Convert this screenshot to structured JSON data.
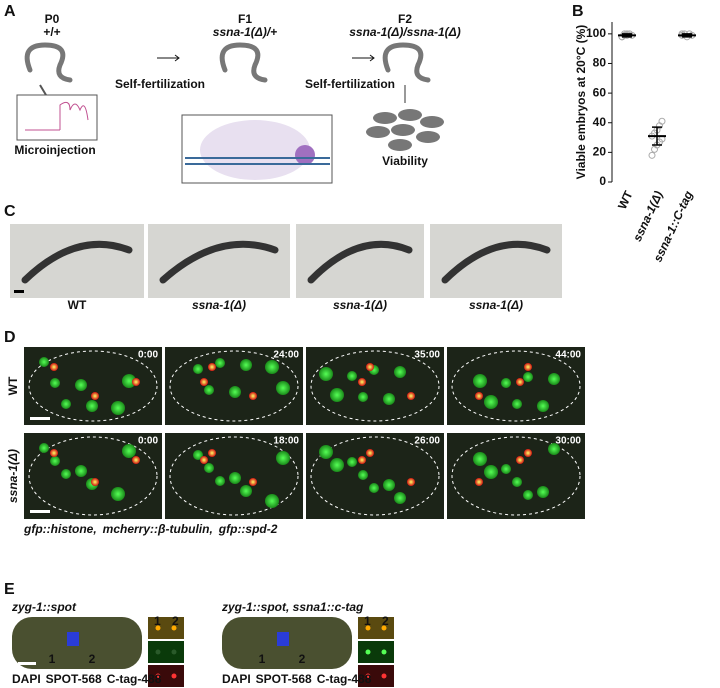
{
  "figure": {
    "a": {
      "label": "A",
      "stages": [
        {
          "name": "P0",
          "genotype": "+/+"
        },
        {
          "name": "F1",
          "genotype": "ssna-1(Δ)/+"
        },
        {
          "name": "F2",
          "genotype": "ssna-1(Δ)/ssna-1(Δ)"
        }
      ],
      "steps": [
        "Self-fertilization",
        "Self-fertilization"
      ],
      "captions": [
        "Microinjection",
        "Viability"
      ]
    },
    "b": {
      "label": "B"
    },
    "c": {
      "label": "C",
      "captions": [
        "WT",
        "ssna-1(Δ)",
        "ssna-1(Δ)",
        "ssna-1(Δ)"
      ]
    },
    "d": {
      "label": "D",
      "rows": [
        {
          "name": "WT",
          "times": [
            "0:00",
            "24:00",
            "35:00",
            "44:00"
          ]
        },
        {
          "name": "ssna-1(Δ)",
          "times": [
            "0:00",
            "18:00",
            "26:00",
            "30:00"
          ]
        }
      ],
      "legend": [
        {
          "text": "gfp::histone,",
          "color": "#2db82d"
        },
        {
          "text": "mcherry::β-tubulin,",
          "color": "#e01010"
        },
        {
          "text": "gfp::spd-2",
          "color": "#2db82d"
        }
      ]
    },
    "e": {
      "label": "E",
      "titles": [
        "zyg-1::spot",
        "zyg-1::spot, ssna1::c-tag"
      ],
      "spots": [
        "1",
        "2"
      ],
      "legend": [
        {
          "text": "DAPI",
          "color": "#1a1adc"
        },
        {
          "text": "SPOT-568",
          "color": "#e01010"
        },
        {
          "text": "C-tag-488",
          "color": "#2db82d"
        }
      ]
    }
  },
  "chart_data": {
    "type": "dot",
    "y_label": "Viable embryos at 20°C (%)",
    "categories": [
      "WT",
      "ssna-1(Δ)",
      "ssna-1::C-tag"
    ],
    "values": [
      99,
      31,
      99
    ],
    "errors": [
      1,
      6,
      1
    ],
    "points": [
      [
        98,
        99,
        100,
        100,
        99,
        98,
        100,
        99
      ],
      [
        18,
        22,
        25,
        27,
        29,
        31,
        33,
        35,
        38,
        41
      ],
      [
        99,
        100,
        98,
        100,
        99,
        100
      ]
    ],
    "ylim": [
      0,
      108
    ],
    "yticks": [
      0,
      20,
      40,
      60,
      80,
      100
    ],
    "point_color": "#aaaaaa",
    "line_color": "#000000"
  }
}
